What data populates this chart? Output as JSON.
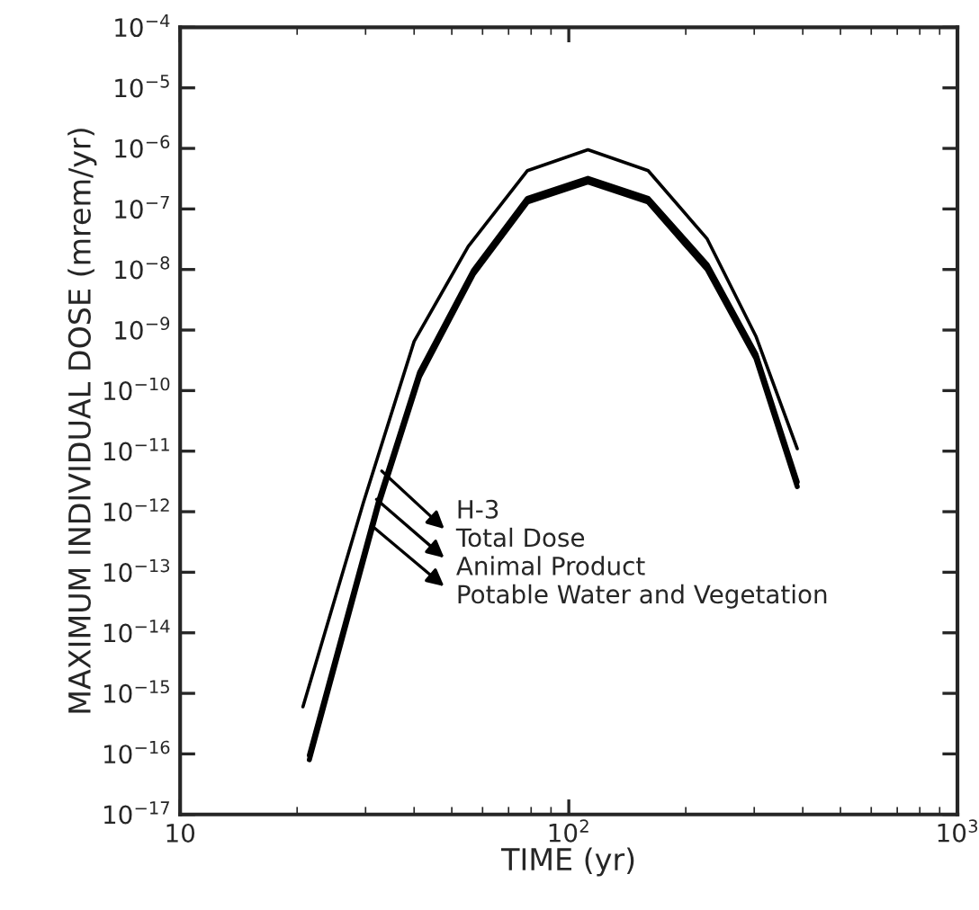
{
  "chart_data": {
    "type": "line",
    "xlabel": "TIME (yr)",
    "ylabel": "MAXIMUM INDIVIDUAL DOSE (mrem/yr)",
    "log": "xy",
    "grid": false,
    "legend": false,
    "xlim": [
      10,
      1000
    ],
    "xticks": [
      10,
      {
        "value": 100,
        "label": "10$^{2}$"
      },
      {
        "value": 1000,
        "label": "10$^{3}$"
      }
    ],
    "ylim": [
      1e-17,
      0.0001
    ],
    "yticks": [
      {
        "value": 1e-17,
        "label": "10$^{−17}$"
      },
      {
        "value": 1e-16,
        "label": "10$^{−16}$"
      },
      {
        "value": 1e-15,
        "label": "10$^{−15}$"
      },
      {
        "value": 1e-14,
        "label": "10$^{−14}$"
      },
      {
        "value": 1e-13,
        "label": "10$^{−13}$"
      },
      {
        "value": 1e-12,
        "label": "10$^{−12}$"
      },
      {
        "value": 1e-11,
        "label": "10$^{−11}$"
      },
      {
        "value": 1e-10,
        "label": "10$^{−10}$"
      },
      {
        "value": 1e-09,
        "label": "10$^{−9}$"
      },
      {
        "value": 1e-08,
        "label": "10$^{−8}$"
      },
      {
        "value": 1e-07,
        "label": "10$^{−7}$"
      },
      {
        "value": 1e-06,
        "label": "10$^{−6}$"
      },
      {
        "value": 1e-05,
        "label": "10$^{−5}$"
      },
      {
        "value": 0.0001,
        "label": "10$^{−4}$"
      }
    ],
    "series": [
      {
        "color": "#000000",
        "x": [
          20.7,
          29.6,
          40.0,
          55.1,
          78.3,
          112,
          160,
          227,
          303,
          387
        ],
        "values": [
          6e-16,
          1.4e-12,
          6.5e-10,
          2.4e-08,
          4.3e-07,
          9.5e-07,
          4.3e-07,
          3.2e-08,
          7.9e-10,
          1.1e-11
        ]
      },
      {
        "color": "#000000",
        "x": [
          21.5,
          32.3,
          41.3,
          56.9,
          78.3,
          112,
          160,
          227,
          303,
          387
        ],
        "values": [
          9.5e-17,
          1.4e-12,
          2e-10,
          9.8e-09,
          1.5e-07,
          3.2e-07,
          1.5e-07,
          1.2e-08,
          4e-10,
          3.1e-12
        ]
      },
      {
        "color": "#000000",
        "x": [
          21.5,
          32.3,
          41.3,
          56.9,
          78.3,
          112,
          160,
          227,
          303,
          387
        ],
        "values": [
          8e-17,
          1.2e-12,
          1.7e-10,
          8.5e-09,
          1.3e-07,
          2.8e-07,
          1.3e-07,
          1e-08,
          3.4e-10,
          2.6e-12
        ]
      }
    ],
    "annotations": [
      "H-3",
      {
        "text": "Total Dose",
        "x": 33,
        "y": 4.7e-12
      },
      {
        "text": "Animal Product",
        "x": 32,
        "y": 1.6e-12
      },
      {
        "text": "Potable Water and Vegetation",
        "x": 31,
        "y": 6e-13
      }
    ]
  }
}
